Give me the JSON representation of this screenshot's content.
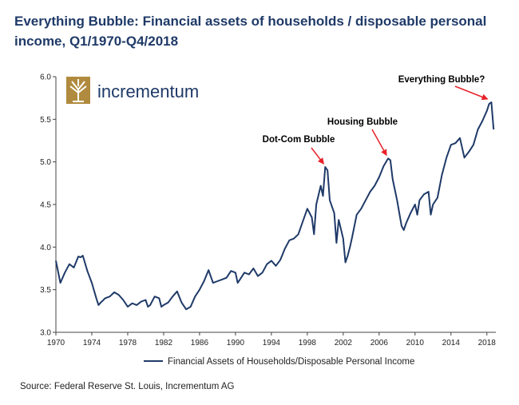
{
  "title": "Everything Bubble: Financial assets of households / disposable personal income, Q1/1970-Q4/2018",
  "source": "Source: Federal Reserve St. Louis, Incrementum AG",
  "logo_text": "incrementum",
  "colors": {
    "series": "#1f3a68",
    "title": "#1f3a68",
    "arrow": "#e8222a",
    "logo": "#b08a3e"
  },
  "chart_data": {
    "type": "line",
    "title": "Everything Bubble: Financial assets of households / disposable personal income, Q1/1970-Q4/2018",
    "xlabel": "",
    "ylabel": "",
    "xlim": [
      1970,
      2019
    ],
    "ylim": [
      3.0,
      6.0
    ],
    "x_ticks": [
      "1970",
      "1974",
      "1978",
      "1982",
      "1986",
      "1990",
      "1994",
      "1998",
      "2002",
      "2006",
      "2010",
      "2014",
      "2018"
    ],
    "y_ticks": [
      "3.0",
      "3.5",
      "4.0",
      "4.5",
      "5.0",
      "5.5",
      "6.0"
    ],
    "legend": {
      "position": "bottom",
      "label": "Financial Assets of Households/Disposable Personal Income"
    },
    "series": [
      {
        "name": "Financial Assets of Households/Disposable Personal Income",
        "x": [
          1970.0,
          1970.5,
          1971.0,
          1971.5,
          1972.0,
          1972.5,
          1972.75,
          1973.0,
          1973.5,
          1974.0,
          1974.5,
          1974.75,
          1975.0,
          1975.5,
          1976.0,
          1976.5,
          1977.0,
          1977.5,
          1978.0,
          1978.5,
          1979.0,
          1979.5,
          1980.0,
          1980.25,
          1980.5,
          1981.0,
          1981.5,
          1981.75,
          1982.0,
          1982.5,
          1983.0,
          1983.5,
          1984.0,
          1984.5,
          1985.0,
          1985.5,
          1986.0,
          1986.5,
          1987.0,
          1987.5,
          1988.0,
          1988.5,
          1989.0,
          1989.5,
          1990.0,
          1990.25,
          1990.5,
          1991.0,
          1991.5,
          1992.0,
          1992.5,
          1993.0,
          1993.5,
          1994.0,
          1994.5,
          1995.0,
          1995.5,
          1996.0,
          1996.5,
          1997.0,
          1997.5,
          1998.0,
          1998.5,
          1998.75,
          1999.0,
          1999.5,
          1999.75,
          2000.0,
          2000.25,
          2000.5,
          2001.0,
          2001.25,
          2001.5,
          2002.0,
          2002.25,
          2002.5,
          2002.75,
          2003.0,
          2003.5,
          2004.0,
          2004.5,
          2005.0,
          2005.5,
          2006.0,
          2006.5,
          2007.0,
          2007.25,
          2007.5,
          2008.0,
          2008.5,
          2008.75,
          2009.0,
          2009.5,
          2010.0,
          2010.25,
          2010.5,
          2011.0,
          2011.5,
          2011.75,
          2012.0,
          2012.5,
          2013.0,
          2013.5,
          2014.0,
          2014.5,
          2015.0,
          2015.5,
          2016.0,
          2016.5,
          2017.0,
          2017.5,
          2018.0,
          2018.25,
          2018.5,
          2018.75
        ],
        "y": [
          3.84,
          3.58,
          3.7,
          3.8,
          3.76,
          3.89,
          3.88,
          3.9,
          3.72,
          3.58,
          3.4,
          3.32,
          3.35,
          3.4,
          3.42,
          3.47,
          3.44,
          3.38,
          3.3,
          3.34,
          3.32,
          3.36,
          3.38,
          3.3,
          3.32,
          3.42,
          3.4,
          3.3,
          3.32,
          3.35,
          3.42,
          3.48,
          3.35,
          3.27,
          3.3,
          3.42,
          3.5,
          3.6,
          3.73,
          3.58,
          3.6,
          3.62,
          3.64,
          3.72,
          3.7,
          3.58,
          3.62,
          3.7,
          3.68,
          3.75,
          3.66,
          3.7,
          3.8,
          3.84,
          3.78,
          3.85,
          3.98,
          4.08,
          4.1,
          4.15,
          4.3,
          4.45,
          4.35,
          4.15,
          4.5,
          4.72,
          4.6,
          4.94,
          4.9,
          4.55,
          4.4,
          4.05,
          4.32,
          4.1,
          3.82,
          3.9,
          4.0,
          4.12,
          4.38,
          4.45,
          4.55,
          4.65,
          4.72,
          4.82,
          4.95,
          5.04,
          5.02,
          4.8,
          4.55,
          4.25,
          4.2,
          4.28,
          4.4,
          4.5,
          4.38,
          4.55,
          4.62,
          4.65,
          4.38,
          4.5,
          4.58,
          4.85,
          5.05,
          5.2,
          5.22,
          5.28,
          5.05,
          5.12,
          5.2,
          5.38,
          5.48,
          5.6,
          5.68,
          5.7,
          5.38
        ]
      }
    ],
    "annotations": [
      {
        "text": "Dot-Com Bubble",
        "target_x": 2000.0,
        "target_y": 4.94
      },
      {
        "text": "Housing Bubble",
        "target_x": 2007.0,
        "target_y": 5.04
      },
      {
        "text": "Everything Bubble?",
        "target_x": 2018.25,
        "target_y": 5.7
      }
    ]
  }
}
